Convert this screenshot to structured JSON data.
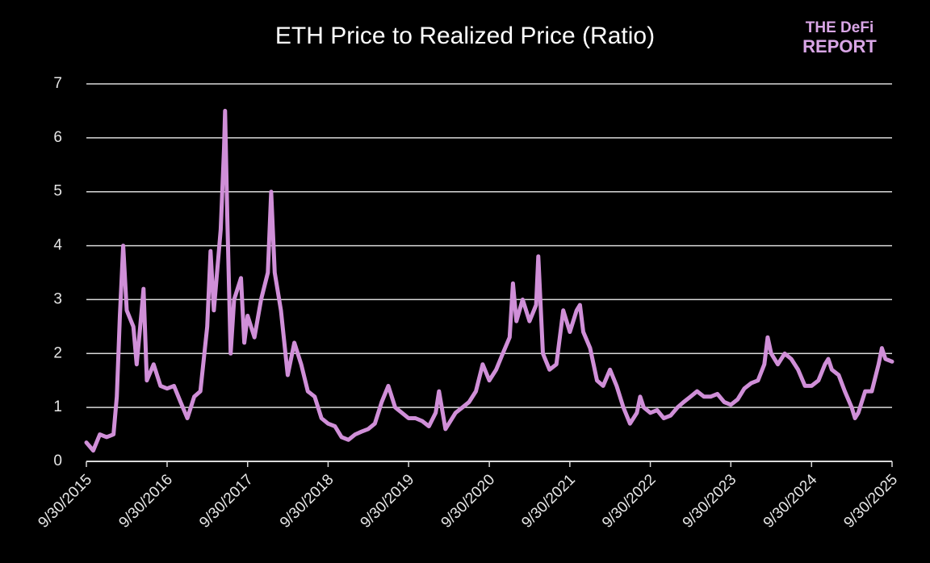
{
  "chart_data": {
    "type": "line",
    "title": "ETH Price to Realized Price (Ratio)",
    "watermark": [
      "THE DeFi",
      "REPORT"
    ],
    "color": "#d08fd8",
    "grid": true,
    "x": [
      "2015-09-30",
      "2015-10-31",
      "2015-11-30",
      "2015-12-31",
      "2016-01-31",
      "2016-02-15",
      "2016-02-29",
      "2016-03-15",
      "2016-03-31",
      "2016-04-30",
      "2016-05-15",
      "2016-05-31",
      "2016-06-15",
      "2016-06-30",
      "2016-07-31",
      "2016-08-31",
      "2016-09-30",
      "2016-10-31",
      "2016-11-30",
      "2016-12-31",
      "2017-01-31",
      "2017-02-28",
      "2017-03-31",
      "2017-04-15",
      "2017-04-30",
      "2017-05-31",
      "2017-06-15",
      "2017-06-20",
      "2017-06-30",
      "2017-07-15",
      "2017-07-31",
      "2017-08-31",
      "2017-09-15",
      "2017-09-30",
      "2017-10-31",
      "2017-11-30",
      "2017-12-31",
      "2018-01-15",
      "2018-01-31",
      "2018-02-28",
      "2018-03-31",
      "2018-04-30",
      "2018-05-31",
      "2018-06-30",
      "2018-07-31",
      "2018-08-31",
      "2018-09-30",
      "2018-10-31",
      "2018-11-30",
      "2018-12-31",
      "2019-01-31",
      "2019-02-28",
      "2019-03-31",
      "2019-04-30",
      "2019-05-31",
      "2019-06-30",
      "2019-07-31",
      "2019-08-31",
      "2019-09-30",
      "2019-10-31",
      "2019-11-30",
      "2019-12-31",
      "2020-01-31",
      "2020-02-15",
      "2020-03-15",
      "2020-04-30",
      "2020-05-31",
      "2020-06-30",
      "2020-07-31",
      "2020-08-31",
      "2020-09-30",
      "2020-10-31",
      "2020-11-30",
      "2020-12-31",
      "2021-01-15",
      "2021-01-31",
      "2021-02-28",
      "2021-03-31",
      "2021-04-30",
      "2021-05-10",
      "2021-05-31",
      "2021-06-30",
      "2021-07-31",
      "2021-08-31",
      "2021-09-30",
      "2021-10-31",
      "2021-11-15",
      "2021-11-30",
      "2021-12-31",
      "2022-01-31",
      "2022-02-28",
      "2022-03-31",
      "2022-04-30",
      "2022-05-31",
      "2022-06-30",
      "2022-07-31",
      "2022-08-15",
      "2022-08-31",
      "2022-09-30",
      "2022-10-31",
      "2022-11-30",
      "2022-12-31",
      "2023-01-31",
      "2023-02-28",
      "2023-03-31",
      "2023-04-30",
      "2023-05-31",
      "2023-06-30",
      "2023-07-31",
      "2023-08-31",
      "2023-09-30",
      "2023-10-31",
      "2023-11-30",
      "2023-12-31",
      "2024-01-31",
      "2024-02-29",
      "2024-03-15",
      "2024-03-31",
      "2024-04-30",
      "2024-05-31",
      "2024-06-30",
      "2024-07-31",
      "2024-08-31",
      "2024-09-30",
      "2024-10-31",
      "2024-11-30",
      "2024-12-15",
      "2024-12-31",
      "2025-01-31",
      "2025-02-28",
      "2025-03-31",
      "2025-04-15",
      "2025-04-30",
      "2025-05-31",
      "2025-06-30",
      "2025-07-31",
      "2025-08-15",
      "2025-08-31",
      "2025-09-30"
    ],
    "values": [
      0.35,
      0.2,
      0.5,
      0.45,
      0.5,
      1.2,
      2.7,
      4.0,
      2.8,
      2.5,
      1.8,
      2.5,
      3.2,
      1.5,
      1.8,
      1.4,
      1.35,
      1.4,
      1.1,
      0.8,
      1.2,
      1.3,
      2.5,
      3.9,
      2.8,
      4.3,
      5.8,
      6.5,
      4.5,
      2.0,
      3.0,
      3.4,
      2.2,
      2.7,
      2.3,
      3.0,
      3.5,
      5.0,
      3.5,
      2.8,
      1.6,
      2.2,
      1.8,
      1.3,
      1.2,
      0.8,
      0.7,
      0.65,
      0.45,
      0.4,
      0.5,
      0.55,
      0.6,
      0.7,
      1.1,
      1.4,
      1.0,
      0.9,
      0.8,
      0.8,
      0.75,
      0.65,
      0.9,
      1.3,
      0.6,
      0.9,
      1.0,
      1.1,
      1.3,
      1.8,
      1.5,
      1.7,
      2.0,
      2.3,
      3.3,
      2.6,
      3.0,
      2.6,
      2.9,
      3.8,
      2.0,
      1.7,
      1.8,
      2.8,
      2.4,
      2.8,
      2.9,
      2.4,
      2.1,
      1.5,
      1.4,
      1.7,
      1.4,
      1.0,
      0.7,
      0.9,
      1.2,
      1.0,
      0.9,
      0.95,
      0.8,
      0.85,
      1.0,
      1.1,
      1.2,
      1.3,
      1.2,
      1.2,
      1.25,
      1.1,
      1.05,
      1.15,
      1.35,
      1.45,
      1.5,
      1.8,
      2.3,
      2.0,
      1.8,
      2.0,
      1.9,
      1.7,
      1.4,
      1.4,
      1.5,
      1.8,
      1.9,
      1.7,
      1.6,
      1.3,
      1.0,
      0.8,
      0.9,
      1.3,
      1.3,
      1.8,
      2.1,
      1.9,
      1.85
    ],
    "xlim": [
      "2015-09-30",
      "2025-09-30"
    ],
    "xticks": [
      {
        "value": "2015-09-30",
        "label": "9/30/2015"
      },
      {
        "value": "2016-09-30",
        "label": "9/30/2016"
      },
      {
        "value": "2017-09-30",
        "label": "9/30/2017"
      },
      {
        "value": "2018-09-30",
        "label": "9/30/2018"
      },
      {
        "value": "2019-09-30",
        "label": "9/30/2019"
      },
      {
        "value": "2020-09-30",
        "label": "9/30/2020"
      },
      {
        "value": "2021-09-30",
        "label": "9/30/2021"
      },
      {
        "value": "2022-09-30",
        "label": "9/30/2022"
      },
      {
        "value": "2023-09-30",
        "label": "9/30/2023"
      },
      {
        "value": "2024-09-30",
        "label": "9/30/2024"
      },
      {
        "value": "2025-09-30",
        "label": "9/30/2025"
      }
    ],
    "ylim": [
      0,
      7
    ],
    "yticks": [
      0,
      1,
      2,
      3,
      4,
      5,
      6,
      7
    ]
  }
}
